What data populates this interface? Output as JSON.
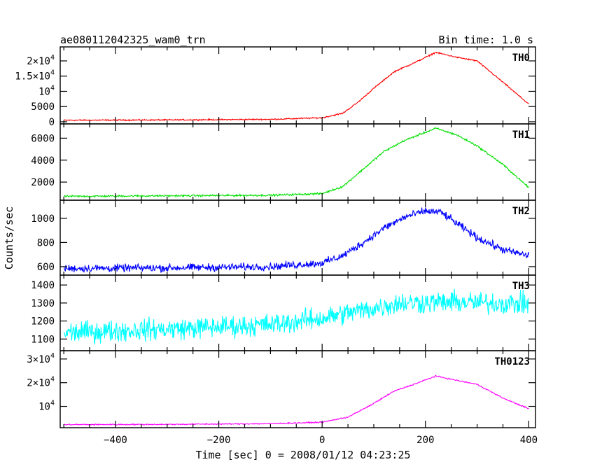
{
  "header": {
    "title": "ae080112042325_wam0_trn",
    "bin_time": "Bin time: 1.0 s"
  },
  "chart_data": {
    "type": "line",
    "xlabel": "Time [sec] 0 = 2008/01/12 04:23:25",
    "ylabel": "Counts/sec",
    "xlim": [
      -507,
      413
    ],
    "x_ticks": [
      -400,
      -200,
      0,
      200,
      400
    ],
    "panels": [
      {
        "name": "TH0",
        "color": "#ff0000",
        "ylim": [
          -700,
          24600
        ],
        "noise": 150,
        "y_ticks": [
          {
            "v": 0,
            "base": "0",
            "exp": ""
          },
          {
            "v": 5000,
            "base": "5000",
            "exp": ""
          },
          {
            "v": 10000,
            "base": "10",
            "exp": "4"
          },
          {
            "v": 15000,
            "base": "1.5×10",
            "exp": "4"
          },
          {
            "v": 20000,
            "base": "2×10",
            "exp": "4"
          }
        ],
        "profile": [
          [
            -500,
            500
          ],
          [
            -300,
            600
          ],
          [
            -100,
            800
          ],
          [
            0,
            1300
          ],
          [
            40,
            2800
          ],
          [
            70,
            6500
          ],
          [
            100,
            11000
          ],
          [
            140,
            16500
          ],
          [
            180,
            19500
          ],
          [
            220,
            22800
          ],
          [
            260,
            21200
          ],
          [
            300,
            20000
          ],
          [
            350,
            13000
          ],
          [
            400,
            5800
          ]
        ]
      },
      {
        "name": "TH1",
        "color": "#00e000",
        "ylim": [
          350,
          7300
        ],
        "noise": 60,
        "y_ticks": [
          {
            "v": 2000,
            "base": "2000",
            "exp": ""
          },
          {
            "v": 4000,
            "base": "4000",
            "exp": ""
          },
          {
            "v": 6000,
            "base": "6000",
            "exp": ""
          }
        ],
        "profile": [
          [
            -500,
            700
          ],
          [
            -300,
            750
          ],
          [
            -100,
            800
          ],
          [
            0,
            950
          ],
          [
            40,
            1600
          ],
          [
            80,
            3200
          ],
          [
            120,
            4800
          ],
          [
            160,
            5800
          ],
          [
            220,
            6900
          ],
          [
            260,
            6300
          ],
          [
            300,
            5300
          ],
          [
            350,
            3600
          ],
          [
            400,
            1500
          ]
        ]
      },
      {
        "name": "TH2",
        "color": "#0000ff",
        "ylim": [
          530,
          1150
        ],
        "noise": 22,
        "y_ticks": [
          {
            "v": 600,
            "base": "600",
            "exp": ""
          },
          {
            "v": 800,
            "base": "800",
            "exp": ""
          },
          {
            "v": 1000,
            "base": "1000",
            "exp": ""
          }
        ],
        "profile": [
          [
            -500,
            585
          ],
          [
            -300,
            590
          ],
          [
            -100,
            600
          ],
          [
            0,
            630
          ],
          [
            40,
            690
          ],
          [
            80,
            800
          ],
          [
            120,
            920
          ],
          [
            160,
            1010
          ],
          [
            200,
            1060
          ],
          [
            230,
            1050
          ],
          [
            260,
            960
          ],
          [
            300,
            840
          ],
          [
            350,
            740
          ],
          [
            400,
            690
          ]
        ]
      },
      {
        "name": "TH3",
        "color": "#00ffff",
        "ylim": [
          1035,
          1455
        ],
        "noise": 42,
        "y_ticks": [
          {
            "v": 1100,
            "base": "1100",
            "exp": ""
          },
          {
            "v": 1200,
            "base": "1200",
            "exp": ""
          },
          {
            "v": 1300,
            "base": "1300",
            "exp": ""
          },
          {
            "v": 1400,
            "base": "1400",
            "exp": ""
          }
        ],
        "profile": [
          [
            -500,
            1135
          ],
          [
            -300,
            1155
          ],
          [
            -100,
            1180
          ],
          [
            0,
            1215
          ],
          [
            50,
            1245
          ],
          [
            100,
            1270
          ],
          [
            150,
            1300
          ],
          [
            250,
            1305
          ],
          [
            400,
            1295
          ]
        ]
      },
      {
        "name": "TH0123",
        "color": "#ff00ff",
        "ylim": [
          1000,
          33500
        ],
        "noise": 180,
        "y_ticks": [
          {
            "v": 10000,
            "base": "10",
            "exp": "4"
          },
          {
            "v": 20000,
            "base": "2×10",
            "exp": "4"
          },
          {
            "v": 30000,
            "base": "3×10",
            "exp": "4"
          }
        ],
        "profile": [
          [
            -500,
            2300
          ],
          [
            -300,
            2400
          ],
          [
            -100,
            2700
          ],
          [
            0,
            3300
          ],
          [
            50,
            5500
          ],
          [
            90,
            10000
          ],
          [
            140,
            16500
          ],
          [
            180,
            19500
          ],
          [
            220,
            22800
          ],
          [
            260,
            21000
          ],
          [
            300,
            19300
          ],
          [
            350,
            13500
          ],
          [
            400,
            9000
          ]
        ]
      }
    ]
  }
}
